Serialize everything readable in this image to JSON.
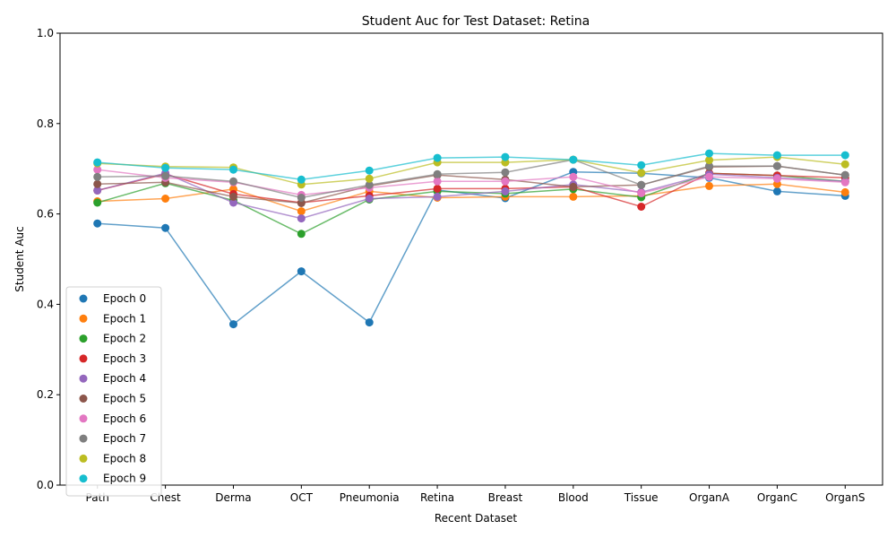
{
  "chart_data": {
    "type": "line",
    "title": "Student Auc for Test Dataset: Retina",
    "xlabel": "Recent Dataset",
    "ylabel": "Student Auc",
    "ylim": [
      0.0,
      1.0
    ],
    "yticks": [
      "0.0",
      "0.2",
      "0.4",
      "0.6",
      "0.8",
      "1.0"
    ],
    "ytick_values": [
      0.0,
      0.2,
      0.4,
      0.6,
      0.8,
      1.0
    ],
    "categories": [
      "Path",
      "Chest",
      "Derma",
      "OCT",
      "Pneumonia",
      "Retina",
      "Breast",
      "Blood",
      "Tissue",
      "OrganA",
      "OrganC",
      "OrganS"
    ],
    "grid": false,
    "legend_position": "lower-left",
    "series": [
      {
        "name": "Epoch 0",
        "color": "#1f77b4",
        "values": [
          0.579,
          0.569,
          0.356,
          0.473,
          0.36,
          0.653,
          0.635,
          0.693,
          0.69,
          0.68,
          0.65,
          0.64
        ]
      },
      {
        "name": "Epoch 1",
        "color": "#ff7f0e",
        "values": [
          0.628,
          0.634,
          0.655,
          0.606,
          0.65,
          0.636,
          0.638,
          0.638,
          0.64,
          0.662,
          0.666,
          0.648
        ]
      },
      {
        "name": "Epoch 2",
        "color": "#2ca02c",
        "values": [
          0.625,
          0.668,
          0.63,
          0.556,
          0.632,
          0.65,
          0.645,
          0.655,
          0.637,
          0.69,
          0.685,
          0.672
        ]
      },
      {
        "name": "Epoch 3",
        "color": "#d62728",
        "values": [
          0.652,
          0.688,
          0.644,
          0.625,
          0.64,
          0.656,
          0.656,
          0.66,
          0.616,
          0.69,
          0.685,
          0.68
        ]
      },
      {
        "name": "Epoch 4",
        "color": "#9467bd",
        "values": [
          0.652,
          0.69,
          0.625,
          0.59,
          0.634,
          0.638,
          0.65,
          0.665,
          0.648,
          0.688,
          0.68,
          0.672
        ]
      },
      {
        "name": "Epoch 5",
        "color": "#8c564b",
        "values": [
          0.666,
          0.67,
          0.638,
          0.624,
          0.662,
          0.686,
          0.676,
          0.66,
          0.664,
          0.704,
          0.706,
          0.686
        ]
      },
      {
        "name": "Epoch 6",
        "color": "#e377c2",
        "values": [
          0.698,
          0.68,
          0.67,
          0.642,
          0.658,
          0.672,
          0.672,
          0.682,
          0.646,
          0.682,
          0.678,
          0.67
        ]
      },
      {
        "name": "Epoch 7",
        "color": "#7f7f7f",
        "values": [
          0.682,
          0.684,
          0.672,
          0.636,
          0.664,
          0.688,
          0.692,
          0.72,
          0.664,
          0.706,
          0.706,
          0.686
        ]
      },
      {
        "name": "Epoch 8",
        "color": "#bcbd22",
        "values": [
          0.712,
          0.705,
          0.703,
          0.665,
          0.678,
          0.714,
          0.714,
          0.72,
          0.691,
          0.719,
          0.726,
          0.71
        ]
      },
      {
        "name": "Epoch 9",
        "color": "#17becf",
        "values": [
          0.714,
          0.702,
          0.698,
          0.676,
          0.696,
          0.724,
          0.726,
          0.72,
          0.708,
          0.734,
          0.73,
          0.73
        ]
      }
    ]
  }
}
